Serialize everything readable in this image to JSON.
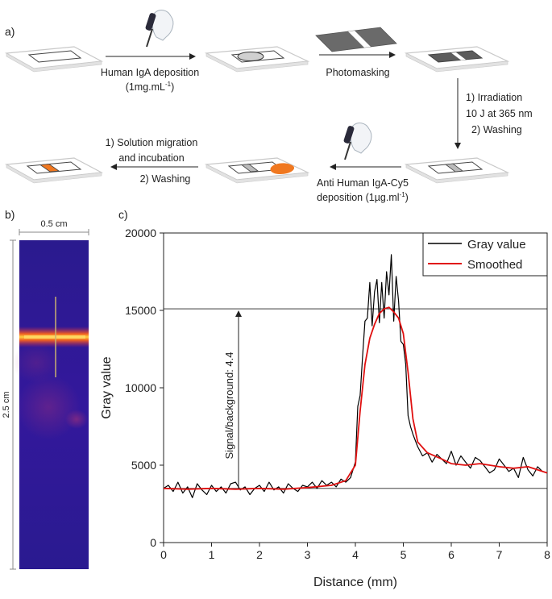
{
  "panel_a": {
    "label": "a)",
    "step1_line1": "Human IgA deposition",
    "step1_line2_main": "(1mg.mL",
    "step1_line2_sup": "-1",
    "step1_line2_end": ")",
    "step2": "Photomasking",
    "step3_line1": "1) Irradiation",
    "step3_line2": "10 J at 365 nm",
    "step3_line3": "2) Washing",
    "step4_line1": "Anti Human IgA-Cy5",
    "step4_line2_main": "deposition (1µg.ml",
    "step4_line2_sup": "-1",
    "step4_line2_end": ")",
    "step5_line1": "1) Solution migration",
    "step5_line2": "and incubation",
    "step5_line3": "2) Washing"
  },
  "panel_b": {
    "label": "b)",
    "width_label": "0.5 cm",
    "height_label": "2.5 cm"
  },
  "panel_c": {
    "label": "c)",
    "annotation": "Signal/background: 4.4"
  },
  "colors": {
    "gray_series": "#000000",
    "smoothed_series": "#e01010",
    "orange": "#f07820",
    "strip_dark": "#555555"
  },
  "chart_data": {
    "type": "line",
    "xlabel": "Distance (mm)",
    "ylabel": "Gray value",
    "xlim": [
      0,
      8
    ],
    "ylim": [
      0,
      20000
    ],
    "xticks": [
      0,
      1,
      2,
      3,
      4,
      5,
      6,
      7,
      8
    ],
    "yticks": [
      0,
      5000,
      10000,
      15000,
      20000
    ],
    "legend_position": "top-right",
    "reference_lines": [
      15100,
      3500
    ],
    "series": [
      {
        "name": "Gray value",
        "x": [
          0,
          0.1,
          0.2,
          0.3,
          0.4,
          0.5,
          0.6,
          0.7,
          0.8,
          0.9,
          1.0,
          1.1,
          1.2,
          1.3,
          1.4,
          1.5,
          1.6,
          1.7,
          1.8,
          1.9,
          2.0,
          2.1,
          2.2,
          2.3,
          2.4,
          2.5,
          2.6,
          2.7,
          2.8,
          2.9,
          3.0,
          3.1,
          3.2,
          3.3,
          3.4,
          3.5,
          3.6,
          3.7,
          3.8,
          3.9,
          4.0,
          4.05,
          4.1,
          4.15,
          4.2,
          4.25,
          4.3,
          4.35,
          4.4,
          4.45,
          4.5,
          4.55,
          4.6,
          4.65,
          4.7,
          4.75,
          4.8,
          4.85,
          4.9,
          4.95,
          5.0,
          5.05,
          5.1,
          5.15,
          5.2,
          5.3,
          5.4,
          5.5,
          5.6,
          5.7,
          5.8,
          5.9,
          6.0,
          6.1,
          6.2,
          6.3,
          6.4,
          6.5,
          6.6,
          6.7,
          6.8,
          6.9,
          7.0,
          7.1,
          7.2,
          7.3,
          7.4,
          7.5,
          7.6,
          7.7,
          7.8,
          7.9,
          8.0
        ],
        "y": [
          3500,
          3700,
          3300,
          3900,
          3200,
          3600,
          2900,
          3800,
          3400,
          3100,
          3700,
          3300,
          3600,
          3200,
          3800,
          3900,
          3400,
          3600,
          3100,
          3500,
          3700,
          3300,
          3900,
          3400,
          3600,
          3200,
          3800,
          3500,
          3300,
          3700,
          3600,
          3900,
          3500,
          4000,
          3700,
          3900,
          3600,
          4100,
          3900,
          4200,
          5200,
          8800,
          9500,
          12000,
          14300,
          14500,
          16800,
          14000,
          16200,
          17000,
          14200,
          16800,
          14500,
          17500,
          16000,
          18600,
          14300,
          17200,
          15600,
          13000,
          12800,
          11500,
          8200,
          7500,
          7000,
          6200,
          5600,
          5800,
          5200,
          5700,
          5400,
          5100,
          5900,
          5000,
          5600,
          5200,
          4800,
          5500,
          5300,
          4900,
          4500,
          4700,
          5400,
          5000,
          4600,
          4800,
          4200,
          5500,
          4700,
          4300,
          4900,
          4600,
          4500
        ]
      },
      {
        "name": "Smoothed",
        "x": [
          0,
          0.5,
          1.0,
          1.5,
          2.0,
          2.5,
          3.0,
          3.5,
          3.8,
          4.0,
          4.1,
          4.2,
          4.3,
          4.4,
          4.5,
          4.6,
          4.7,
          4.8,
          4.9,
          5.0,
          5.1,
          5.2,
          5.3,
          5.5,
          5.8,
          6.0,
          6.3,
          6.6,
          7.0,
          7.3,
          7.6,
          8.0
        ],
        "y": [
          3500,
          3450,
          3500,
          3450,
          3500,
          3450,
          3550,
          3700,
          4000,
          5000,
          8500,
          11500,
          13200,
          14100,
          14800,
          15100,
          15200,
          14900,
          14500,
          13500,
          11000,
          8000,
          6500,
          5800,
          5400,
          5100,
          5000,
          5100,
          4900,
          4800,
          4900,
          4500
        ]
      }
    ]
  }
}
